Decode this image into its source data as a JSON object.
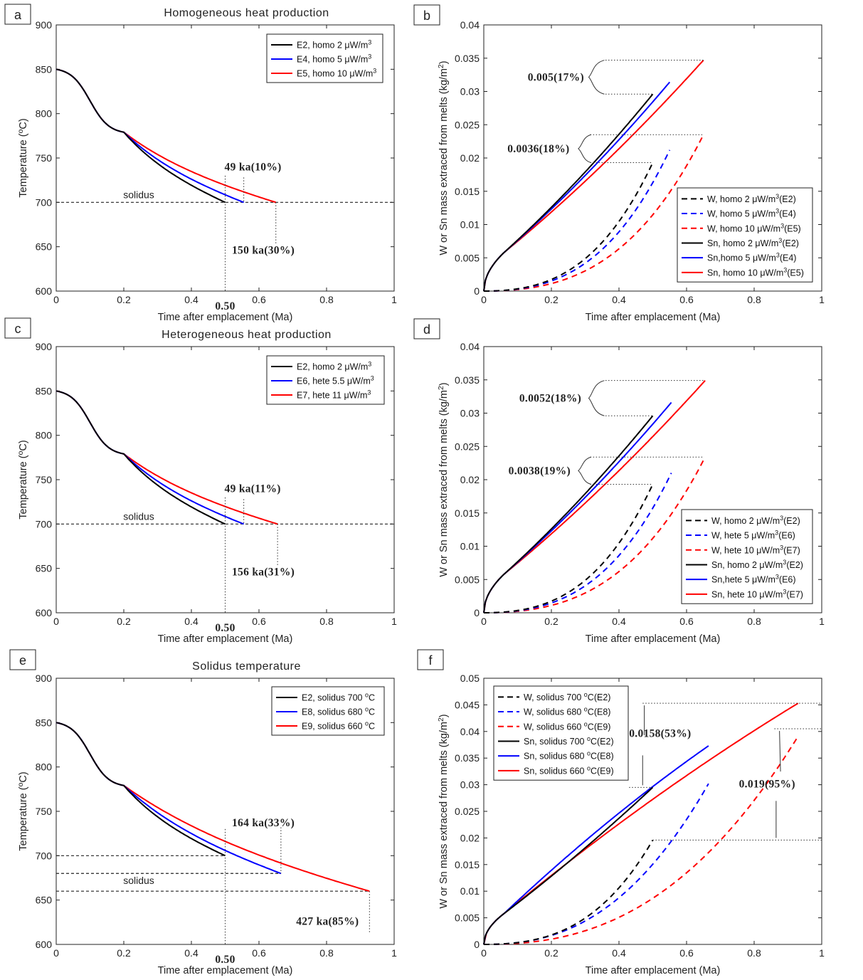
{
  "figure": {
    "panels": [
      "a",
      "b",
      "c",
      "d",
      "e",
      "f"
    ]
  },
  "chart_data": [
    {
      "id": "a",
      "type": "line",
      "label": "a",
      "title": "Homogeneous heat production",
      "xlabel": "Time after emplacement (Ma)",
      "ylabel": "Temperature (oC)",
      "xlim": [
        0,
        1
      ],
      "ylim": [
        600,
        900
      ],
      "xticks": [
        "0",
        "0.2",
        "0.4",
        "0.6",
        "0.8",
        "1"
      ],
      "yticks": [
        "600",
        "650",
        "700",
        "750",
        "800",
        "850",
        "900"
      ],
      "solidus_label": "solidus",
      "solidus": [
        700
      ],
      "series": [
        {
          "name": "E2, homo 2 μW/m3",
          "color": "#000000",
          "dash": false,
          "end_x": 0.5,
          "end_y": 700
        },
        {
          "name": "E4, homo 5 μW/m3",
          "color": "#0000ff",
          "dash": false,
          "end_x": 0.555,
          "end_y": 700
        },
        {
          "name": "E5, homo 10 μW/m3",
          "color": "#ff0000",
          "dash": false,
          "end_x": 0.65,
          "end_y": 700
        }
      ],
      "annotations": [
        {
          "text": "49 ka(10%)"
        },
        {
          "text": "150 ka(30%)"
        },
        {
          "text": "0.50"
        }
      ]
    },
    {
      "id": "b",
      "type": "line",
      "label": "b",
      "title": "",
      "xlabel": "Time after emplacement (Ma)",
      "ylabel": "W or Sn mass extraced from melts (kg/m2)",
      "xlim": [
        0,
        1
      ],
      "ylim": [
        0,
        0.04
      ],
      "xticks": [
        "0",
        "0.2",
        "0.4",
        "0.6",
        "0.8",
        "1"
      ],
      "yticks": [
        "0",
        "0.005",
        "0.01",
        "0.015",
        "0.02",
        "0.025",
        "0.03",
        "0.035",
        "0.04"
      ],
      "series": [
        {
          "name": "W, homo 2 μW/m3(E2)",
          "color": "#000000",
          "dash": true,
          "end_x": 0.5,
          "end_y": 0.0193
        },
        {
          "name": "W, homo 5 μW/m3(E4)",
          "color": "#0000ff",
          "dash": true,
          "end_x": 0.55,
          "end_y": 0.0212
        },
        {
          "name": "W, homo 10 μW/m3(E5)",
          "color": "#ff0000",
          "dash": true,
          "end_x": 0.65,
          "end_y": 0.0235
        },
        {
          "name": "Sn, homo 2 μW/m3(E2)",
          "color": "#000000",
          "dash": false,
          "end_x": 0.5,
          "end_y": 0.0296
        },
        {
          "name": "Sn,homo 5 μW/m3(E4)",
          "color": "#0000ff",
          "dash": false,
          "end_x": 0.55,
          "end_y": 0.0314
        },
        {
          "name": "Sn, homo 10 μW/m3(E5)",
          "color": "#ff0000",
          "dash": false,
          "end_x": 0.65,
          "end_y": 0.0347
        }
      ],
      "annotations": [
        {
          "text": "0.005(17%)"
        },
        {
          "text": "0.0036(18%)"
        }
      ]
    },
    {
      "id": "c",
      "type": "line",
      "label": "c",
      "title": "Heterogeneous heat production",
      "xlabel": "Time after emplacement (Ma)",
      "ylabel": "Temperature (oC)",
      "xlim": [
        0,
        1
      ],
      "ylim": [
        600,
        900
      ],
      "xticks": [
        "0",
        "0.2",
        "0.4",
        "0.6",
        "0.8",
        "1"
      ],
      "yticks": [
        "600",
        "650",
        "700",
        "750",
        "800",
        "850",
        "900"
      ],
      "solidus_label": "solidus",
      "solidus": [
        700
      ],
      "series": [
        {
          "name": "E2, homo 2 μW/m3",
          "color": "#000000",
          "dash": false,
          "end_x": 0.5,
          "end_y": 700
        },
        {
          "name": "E6, hete 5.5 μW/m3",
          "color": "#0000ff",
          "dash": false,
          "end_x": 0.555,
          "end_y": 700
        },
        {
          "name": "E7, hete 11 μW/m3",
          "color": "#ff0000",
          "dash": false,
          "end_x": 0.655,
          "end_y": 700
        }
      ],
      "annotations": [
        {
          "text": "49 ka(11%)"
        },
        {
          "text": "156 ka(31%)"
        },
        {
          "text": "0.50"
        }
      ]
    },
    {
      "id": "d",
      "type": "line",
      "label": "d",
      "title": "",
      "xlabel": "Time after emplacement (Ma)",
      "ylabel": "W or Sn mass extraced from melts (kg/m2)",
      "xlim": [
        0,
        1
      ],
      "ylim": [
        0,
        0.04
      ],
      "xticks": [
        "0",
        "0.2",
        "0.4",
        "0.6",
        "0.8",
        "1"
      ],
      "yticks": [
        "0",
        "0.005",
        "0.01",
        "0.015",
        "0.02",
        "0.025",
        "0.03",
        "0.035",
        "0.04"
      ],
      "series": [
        {
          "name": "W, homo 2 μW/m3(E2)",
          "color": "#000000",
          "dash": true,
          "end_x": 0.5,
          "end_y": 0.0193
        },
        {
          "name": "W, hete 5 μW/m3(E6)",
          "color": "#0000ff",
          "dash": true,
          "end_x": 0.555,
          "end_y": 0.021
        },
        {
          "name": "W, hete 10 μW/m3(E7)",
          "color": "#ff0000",
          "dash": true,
          "end_x": 0.655,
          "end_y": 0.0234
        },
        {
          "name": "Sn, homo 2 μW/m3(E2)",
          "color": "#000000",
          "dash": false,
          "end_x": 0.5,
          "end_y": 0.0296
        },
        {
          "name": "Sn,hete 5 μW/m3(E6)",
          "color": "#0000ff",
          "dash": false,
          "end_x": 0.555,
          "end_y": 0.0316
        },
        {
          "name": "Sn, hete 10 μW/m3(E7)",
          "color": "#ff0000",
          "dash": false,
          "end_x": 0.655,
          "end_y": 0.0349
        }
      ],
      "annotations": [
        {
          "text": "0.0052(18%)"
        },
        {
          "text": "0.0038(19%)"
        }
      ]
    },
    {
      "id": "e",
      "type": "line",
      "label": "e",
      "title": "Solidus temperature",
      "xlabel": "Time after emplacement (Ma)",
      "ylabel": "Temperature (oC)",
      "xlim": [
        0,
        1
      ],
      "ylim": [
        600,
        900
      ],
      "xticks": [
        "0",
        "0.2",
        "0.4",
        "0.6",
        "0.8",
        "1"
      ],
      "yticks": [
        "600",
        "650",
        "700",
        "750",
        "800",
        "850",
        "900"
      ],
      "solidus_label": "solidus",
      "solidus": [
        700,
        680,
        660
      ],
      "series": [
        {
          "name": "E2, solidus 700 oC",
          "color": "#000000",
          "dash": false,
          "end_x": 0.5,
          "end_y": 700
        },
        {
          "name": "E8, solidus 680 oC",
          "color": "#0000ff",
          "dash": false,
          "end_x": 0.665,
          "end_y": 680
        },
        {
          "name": "E9, solidus 660 oC",
          "color": "#ff0000",
          "dash": false,
          "end_x": 0.927,
          "end_y": 660
        }
      ],
      "annotations": [
        {
          "text": "164 ka(33%)"
        },
        {
          "text": "427 ka(85%)"
        },
        {
          "text": "0.50"
        }
      ]
    },
    {
      "id": "f",
      "type": "line",
      "label": "f",
      "title": "",
      "xlabel": "Time after emplacement (Ma)",
      "ylabel": "W or Sn mass extraced from melts (kg/m2)",
      "xlim": [
        0,
        1
      ],
      "ylim": [
        0,
        0.05
      ],
      "xticks": [
        "0",
        "0.2",
        "0.4",
        "0.6",
        "0.8",
        "1"
      ],
      "yticks": [
        "0",
        "0.005",
        "0.01",
        "0.015",
        "0.02",
        "0.025",
        "0.03",
        "0.035",
        "0.04",
        "0.045",
        "0.05"
      ],
      "series": [
        {
          "name": "W, solidus 700 oC(E2)",
          "color": "#000000",
          "dash": true,
          "end_x": 0.5,
          "end_y": 0.0196
        },
        {
          "name": "W, solidus 680 oC(E8)",
          "color": "#0000ff",
          "dash": true,
          "end_x": 0.665,
          "end_y": 0.0302
        },
        {
          "name": "W, solidus 660 oC(E9)",
          "color": "#ff0000",
          "dash": true,
          "end_x": 0.93,
          "end_y": 0.0391
        },
        {
          "name": "Sn, solidus 700 oC(E2)",
          "color": "#000000",
          "dash": false,
          "end_x": 0.5,
          "end_y": 0.0295
        },
        {
          "name": "Sn, solidus 680 oC(E8)",
          "color": "#0000ff",
          "dash": false,
          "end_x": 0.665,
          "end_y": 0.0373
        },
        {
          "name": "Sn, solidus 660 oC(E9)",
          "color": "#ff0000",
          "dash": false,
          "end_x": 0.93,
          "end_y": 0.0453
        }
      ],
      "annotations": [
        {
          "text": "0.0158(53%)"
        },
        {
          "text": "0.019(95%)"
        }
      ]
    }
  ]
}
